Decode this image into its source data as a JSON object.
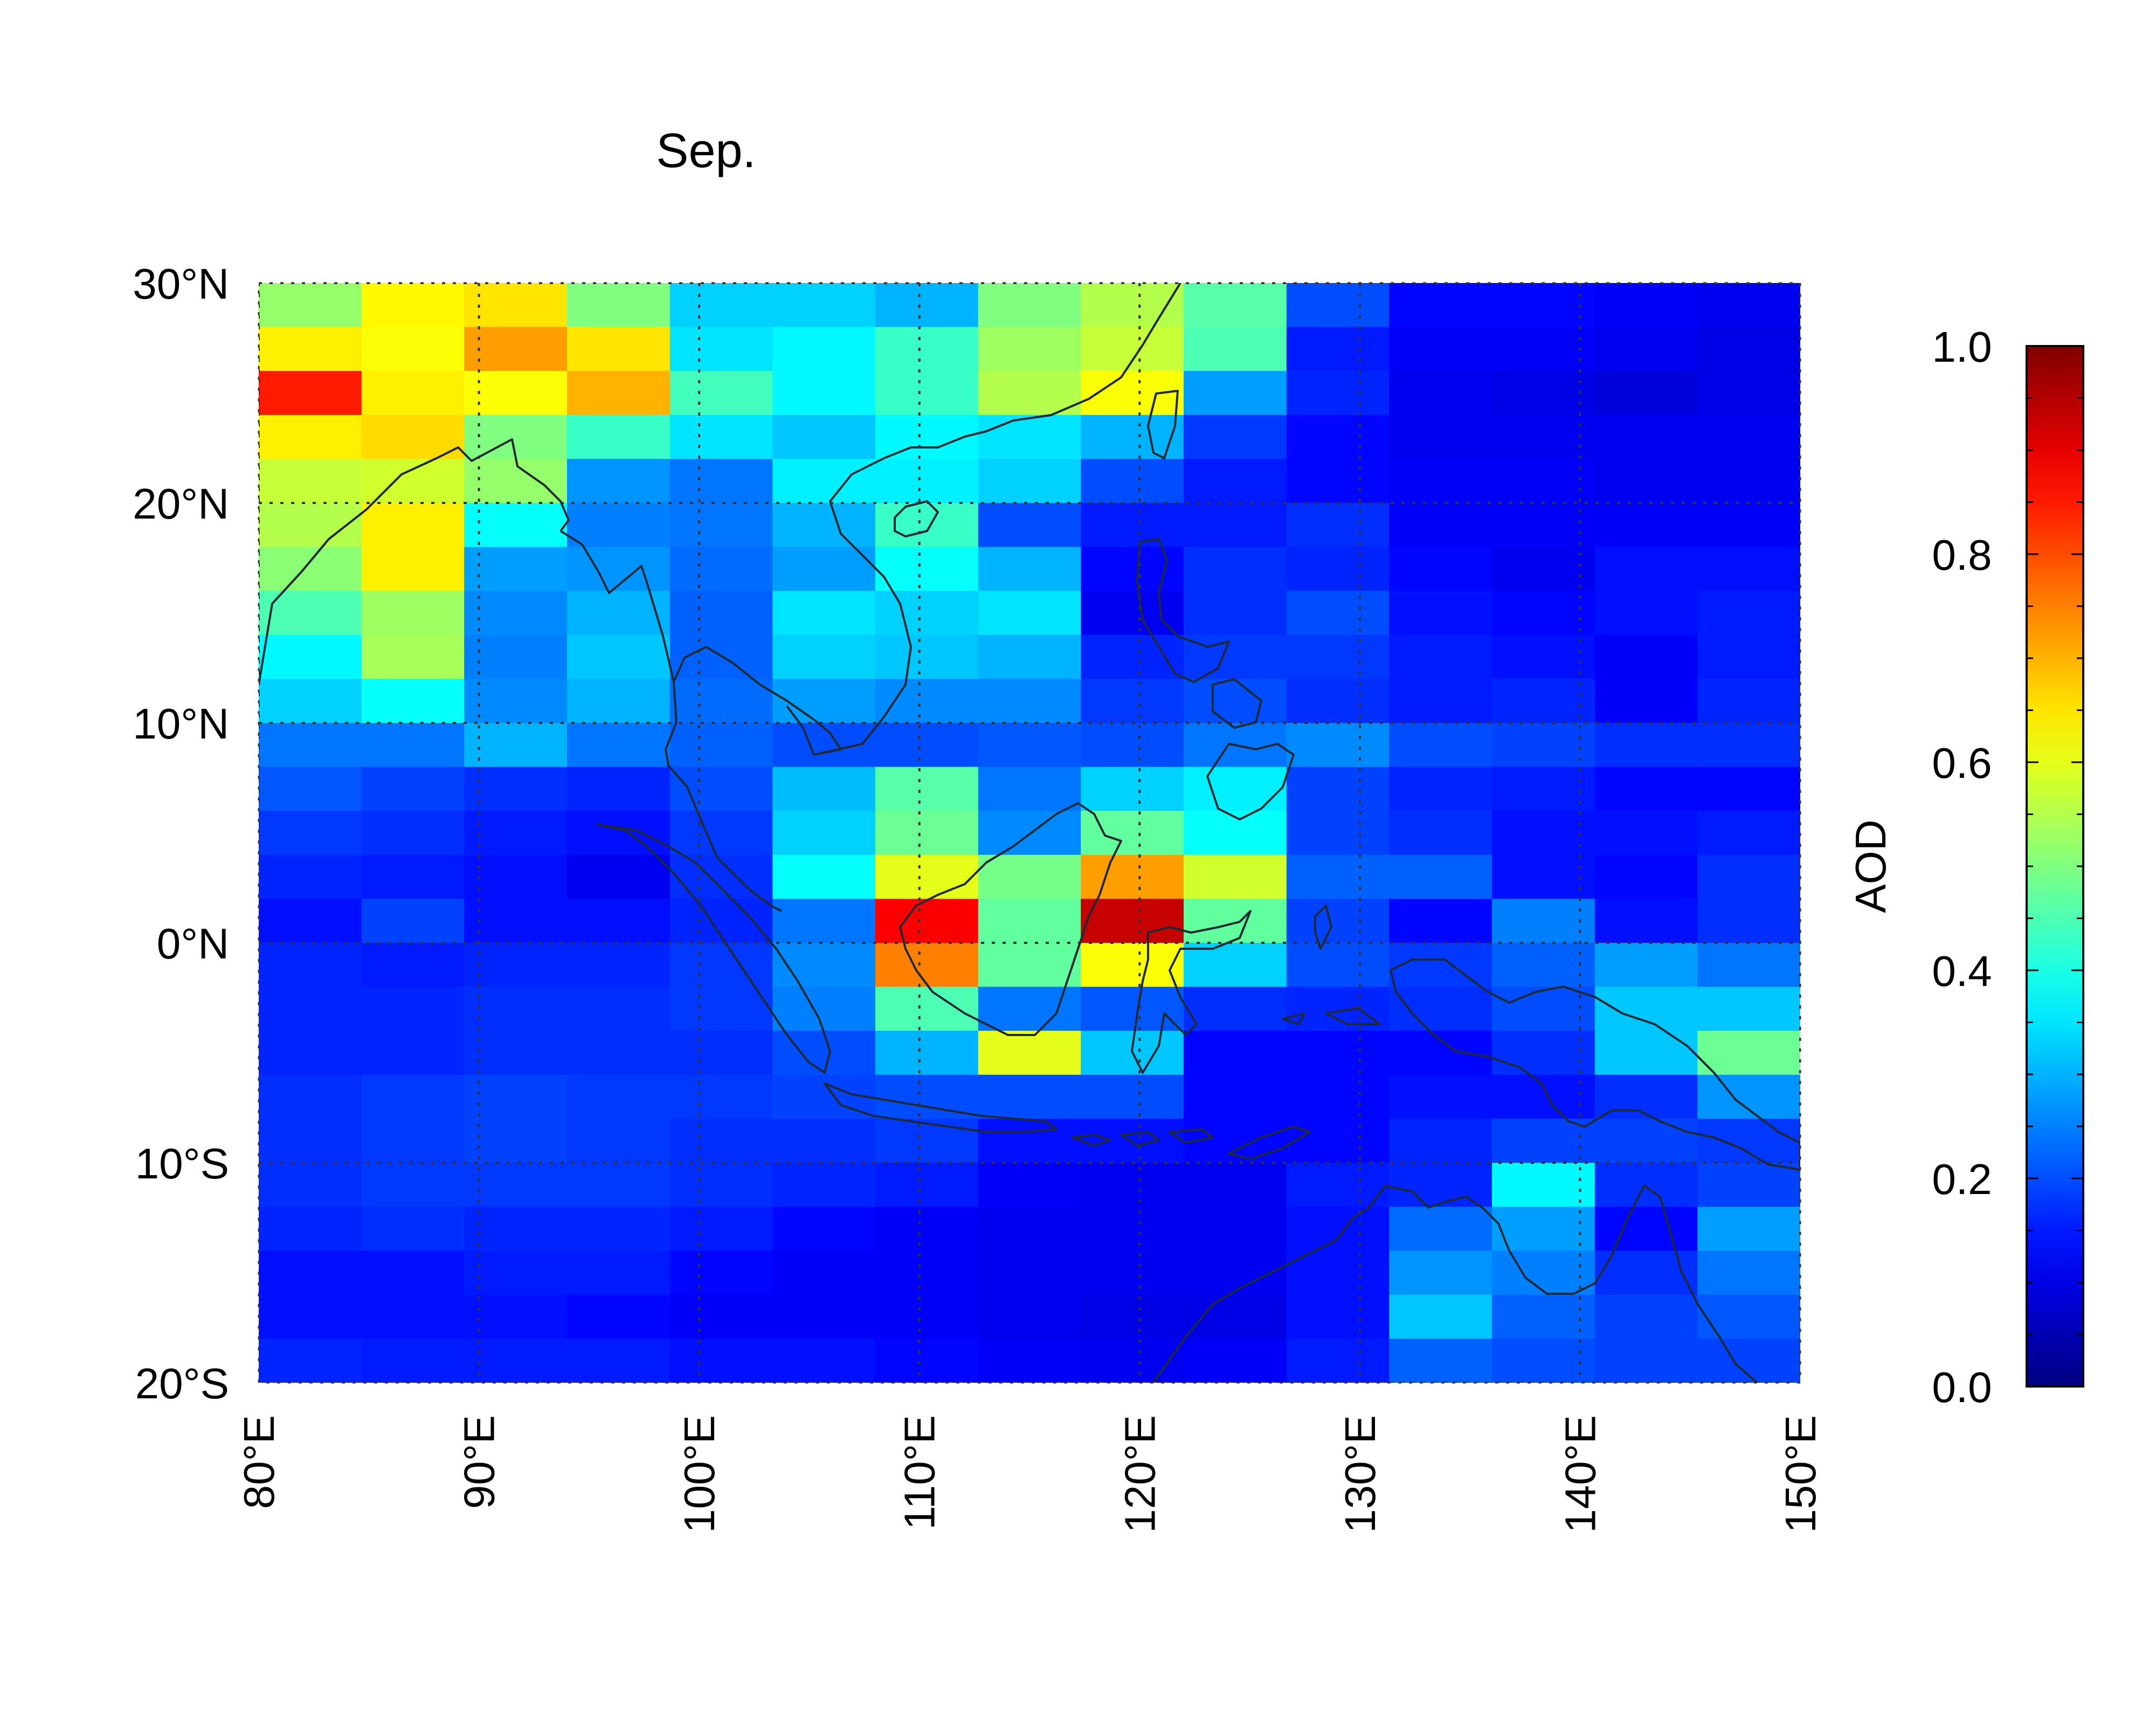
{
  "chart_data": {
    "type": "heatmap",
    "title": "Sep.",
    "colorbar_label": "AOD",
    "colorbar_range": [
      0.0,
      1.0
    ],
    "colorbar_ticks": [
      "0.0",
      "0.2",
      "0.4",
      "0.6",
      "0.8",
      "1.0"
    ],
    "colormap": "jet",
    "x_range": [
      80,
      150
    ],
    "y_range": [
      -20,
      30
    ],
    "x_ticks": [
      80,
      90,
      100,
      110,
      120,
      130,
      140,
      150
    ],
    "x_tick_labels": [
      "80°E",
      "90°E",
      "100°E",
      "110°E",
      "120°E",
      "130°E",
      "140°E",
      "150°E"
    ],
    "y_ticks": [
      30,
      20,
      10,
      0,
      -10,
      -20
    ],
    "y_tick_labels": [
      "30°N",
      "20°N",
      "10°N",
      "0°N",
      "10°S",
      "20°S"
    ],
    "grid": "dotted",
    "cell_lon_edges": [
      80.0,
      84.67,
      89.33,
      94.0,
      98.67,
      103.33,
      108.0,
      112.67,
      117.33,
      122.0,
      126.67,
      131.33,
      136.0,
      140.67,
      145.33,
      150.0
    ],
    "cell_lat_edges": [
      30,
      28,
      26,
      24,
      22,
      20,
      18,
      16,
      14,
      12,
      10,
      8,
      6,
      4,
      2,
      0,
      -2,
      -4,
      -6,
      -8,
      -10,
      -12,
      -14,
      -16,
      -18,
      -20
    ],
    "values": [
      [
        0.52,
        0.63,
        0.65,
        0.5,
        0.33,
        0.33,
        0.3,
        0.5,
        0.55,
        0.46,
        0.2,
        0.13,
        0.13,
        0.12,
        0.11
      ],
      [
        0.64,
        0.62,
        0.72,
        0.65,
        0.35,
        0.37,
        0.43,
        0.53,
        0.57,
        0.45,
        0.15,
        0.12,
        0.12,
        0.11,
        0.1
      ],
      [
        0.85,
        0.64,
        0.62,
        0.7,
        0.44,
        0.37,
        0.43,
        0.55,
        0.62,
        0.28,
        0.16,
        0.11,
        0.1,
        0.09,
        0.1
      ],
      [
        0.64,
        0.66,
        0.5,
        0.43,
        0.35,
        0.32,
        0.37,
        0.35,
        0.3,
        0.18,
        0.13,
        0.11,
        0.11,
        0.11,
        0.11
      ],
      [
        0.57,
        0.58,
        0.52,
        0.27,
        0.24,
        0.36,
        0.36,
        0.33,
        0.2,
        0.15,
        0.13,
        0.12,
        0.12,
        0.11,
        0.11
      ],
      [
        0.55,
        0.64,
        0.38,
        0.25,
        0.24,
        0.3,
        0.43,
        0.2,
        0.15,
        0.15,
        0.17,
        0.12,
        0.12,
        0.12,
        0.12
      ],
      [
        0.51,
        0.64,
        0.28,
        0.27,
        0.23,
        0.28,
        0.38,
        0.3,
        0.13,
        0.17,
        0.16,
        0.13,
        0.11,
        0.14,
        0.14
      ],
      [
        0.45,
        0.53,
        0.26,
        0.3,
        0.22,
        0.35,
        0.33,
        0.35,
        0.11,
        0.17,
        0.2,
        0.14,
        0.13,
        0.14,
        0.15
      ],
      [
        0.37,
        0.54,
        0.25,
        0.32,
        0.22,
        0.33,
        0.32,
        0.3,
        0.16,
        0.18,
        0.18,
        0.15,
        0.14,
        0.12,
        0.15
      ],
      [
        0.33,
        0.38,
        0.26,
        0.3,
        0.23,
        0.28,
        0.26,
        0.26,
        0.18,
        0.2,
        0.17,
        0.15,
        0.16,
        0.12,
        0.16
      ],
      [
        0.24,
        0.24,
        0.3,
        0.24,
        0.22,
        0.2,
        0.2,
        0.21,
        0.2,
        0.24,
        0.26,
        0.2,
        0.19,
        0.17,
        0.17
      ],
      [
        0.21,
        0.19,
        0.17,
        0.16,
        0.2,
        0.31,
        0.46,
        0.24,
        0.33,
        0.36,
        0.19,
        0.16,
        0.15,
        0.13,
        0.13
      ],
      [
        0.18,
        0.17,
        0.15,
        0.14,
        0.18,
        0.33,
        0.48,
        0.26,
        0.47,
        0.38,
        0.19,
        0.17,
        0.14,
        0.14,
        0.15
      ],
      [
        0.16,
        0.15,
        0.14,
        0.11,
        0.17,
        0.38,
        0.6,
        0.49,
        0.72,
        0.58,
        0.22,
        0.22,
        0.14,
        0.13,
        0.17
      ],
      [
        0.14,
        0.19,
        0.14,
        0.14,
        0.16,
        0.24,
        0.88,
        0.47,
        0.93,
        0.47,
        0.19,
        0.13,
        0.25,
        0.14,
        0.17
      ],
      [
        0.16,
        0.15,
        0.16,
        0.16,
        0.18,
        0.26,
        0.75,
        0.47,
        0.62,
        0.33,
        0.2,
        0.18,
        0.22,
        0.28,
        0.24
      ],
      [
        0.16,
        0.16,
        0.17,
        0.17,
        0.18,
        0.25,
        0.45,
        0.24,
        0.21,
        0.17,
        0.16,
        0.17,
        0.2,
        0.32,
        0.32
      ],
      [
        0.16,
        0.16,
        0.17,
        0.17,
        0.17,
        0.2,
        0.3,
        0.6,
        0.32,
        0.13,
        0.13,
        0.13,
        0.17,
        0.32,
        0.48
      ],
      [
        0.17,
        0.18,
        0.19,
        0.18,
        0.18,
        0.19,
        0.2,
        0.2,
        0.2,
        0.13,
        0.13,
        0.14,
        0.14,
        0.17,
        0.27
      ],
      [
        0.17,
        0.18,
        0.19,
        0.18,
        0.17,
        0.17,
        0.18,
        0.14,
        0.14,
        0.13,
        0.13,
        0.16,
        0.19,
        0.19,
        0.18
      ],
      [
        0.17,
        0.18,
        0.18,
        0.18,
        0.17,
        0.16,
        0.15,
        0.12,
        0.11,
        0.11,
        0.15,
        0.16,
        0.37,
        0.17,
        0.19
      ],
      [
        0.16,
        0.17,
        0.16,
        0.16,
        0.15,
        0.13,
        0.12,
        0.11,
        0.11,
        0.11,
        0.14,
        0.23,
        0.28,
        0.13,
        0.28
      ],
      [
        0.14,
        0.14,
        0.15,
        0.15,
        0.13,
        0.12,
        0.12,
        0.11,
        0.11,
        0.11,
        0.14,
        0.27,
        0.25,
        0.17,
        0.24
      ],
      [
        0.14,
        0.14,
        0.14,
        0.13,
        0.12,
        0.12,
        0.12,
        0.11,
        0.1,
        0.1,
        0.14,
        0.32,
        0.22,
        0.19,
        0.21
      ],
      [
        0.16,
        0.15,
        0.15,
        0.15,
        0.14,
        0.14,
        0.13,
        0.12,
        0.11,
        0.12,
        0.15,
        0.22,
        0.2,
        0.19,
        0.19
      ]
    ]
  }
}
